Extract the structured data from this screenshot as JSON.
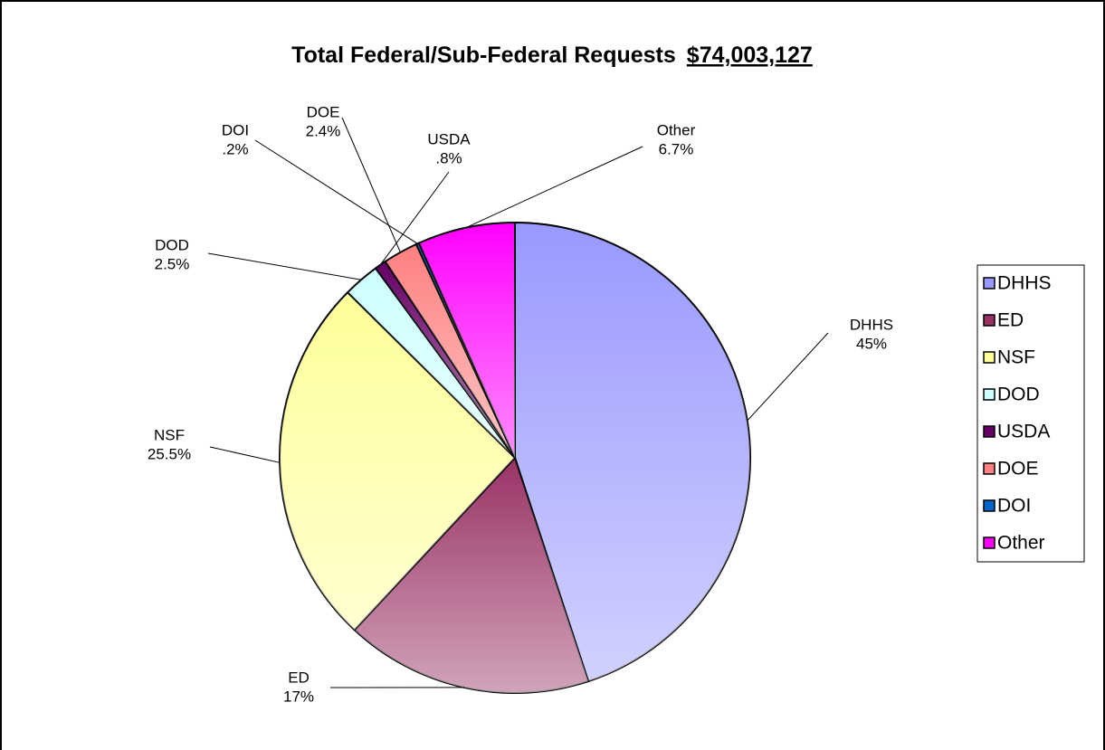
{
  "chart_data": {
    "type": "pie",
    "title": "Total Federal/Sub-Federal Requests",
    "title_amount": "$74,003,127",
    "categories": [
      "DHHS",
      "ED",
      "NSF",
      "DOD",
      "USDA",
      "DOE",
      "DOI",
      "Other"
    ],
    "values": [
      45,
      17,
      25.5,
      2.5,
      0.8,
      2.4,
      0.2,
      6.7
    ],
    "value_labels": [
      "45%",
      "17%",
      "25.5%",
      "2.5%",
      ".8%",
      "2.4%",
      ".2%",
      "6.7%"
    ],
    "colors": [
      "#9999ff",
      "#993366",
      "#ffff99",
      "#ccffff",
      "#660066",
      "#ff8080",
      "#0066cc",
      "#ff00ff"
    ],
    "legend": "right"
  }
}
